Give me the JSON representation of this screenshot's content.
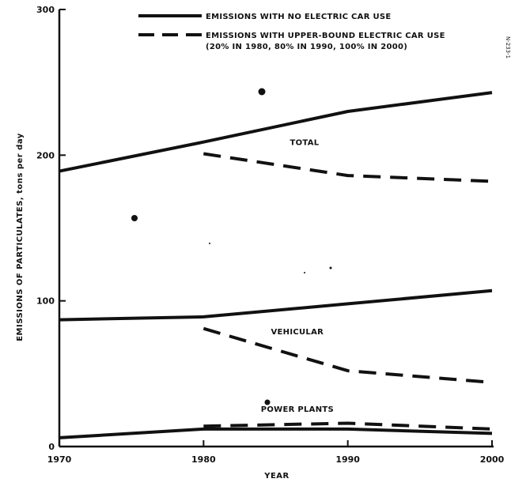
{
  "chart_data": {
    "type": "line",
    "title": "",
    "xlabel": "YEAR",
    "ylabel": "EMISSIONS OF PARTICULATES, tons per day",
    "xlim": [
      1970,
      2000
    ],
    "ylim": [
      0,
      300
    ],
    "x_ticks": [
      "1970",
      "1980",
      "1990",
      "2000"
    ],
    "y_ticks": [
      "0",
      "100",
      "200",
      "300"
    ],
    "grid": false,
    "legend_position": "top-right",
    "legend": [
      {
        "style": "solid",
        "label": "EMISSIONS WITH NO ELECTRIC CAR USE"
      },
      {
        "style": "dashed",
        "label": "EMISSIONS WITH UPPER-BOUND ELECTRIC CAR USE",
        "label2": "(20% IN 1980, 80% IN 1990, 100% IN 2000)"
      }
    ],
    "series": [
      {
        "group": "TOTAL",
        "style": "solid",
        "x": [
          1970,
          1980,
          1990,
          2000
        ],
        "y": [
          189,
          209,
          230,
          243
        ]
      },
      {
        "group": "TOTAL",
        "style": "dashed",
        "x": [
          1980,
          1990,
          2000
        ],
        "y": [
          201,
          186,
          182
        ]
      },
      {
        "group": "VEHICULAR",
        "style": "solid",
        "x": [
          1970,
          1980,
          1990,
          2000
        ],
        "y": [
          87,
          89,
          98,
          107
        ]
      },
      {
        "group": "VEHICULAR",
        "style": "dashed",
        "x": [
          1980,
          1990,
          2000
        ],
        "y": [
          81,
          52,
          44
        ]
      },
      {
        "group": "POWER PLANTS",
        "style": "solid",
        "x": [
          1970,
          1980,
          1990,
          2000
        ],
        "y": [
          6,
          12,
          12,
          9
        ]
      },
      {
        "group": "POWER PLANTS",
        "style": "dashed",
        "x": [
          1980,
          1990,
          2000
        ],
        "y": [
          14,
          16,
          12
        ]
      }
    ],
    "annotations": [
      {
        "text": "TOTAL",
        "x": 1987,
        "y": 207
      },
      {
        "text": "VEHICULAR",
        "x": 1986.5,
        "y": 77
      },
      {
        "text": "POWER PLANTS",
        "x": 1986.5,
        "y": 24
      }
    ]
  },
  "side_code": "N-233-1"
}
